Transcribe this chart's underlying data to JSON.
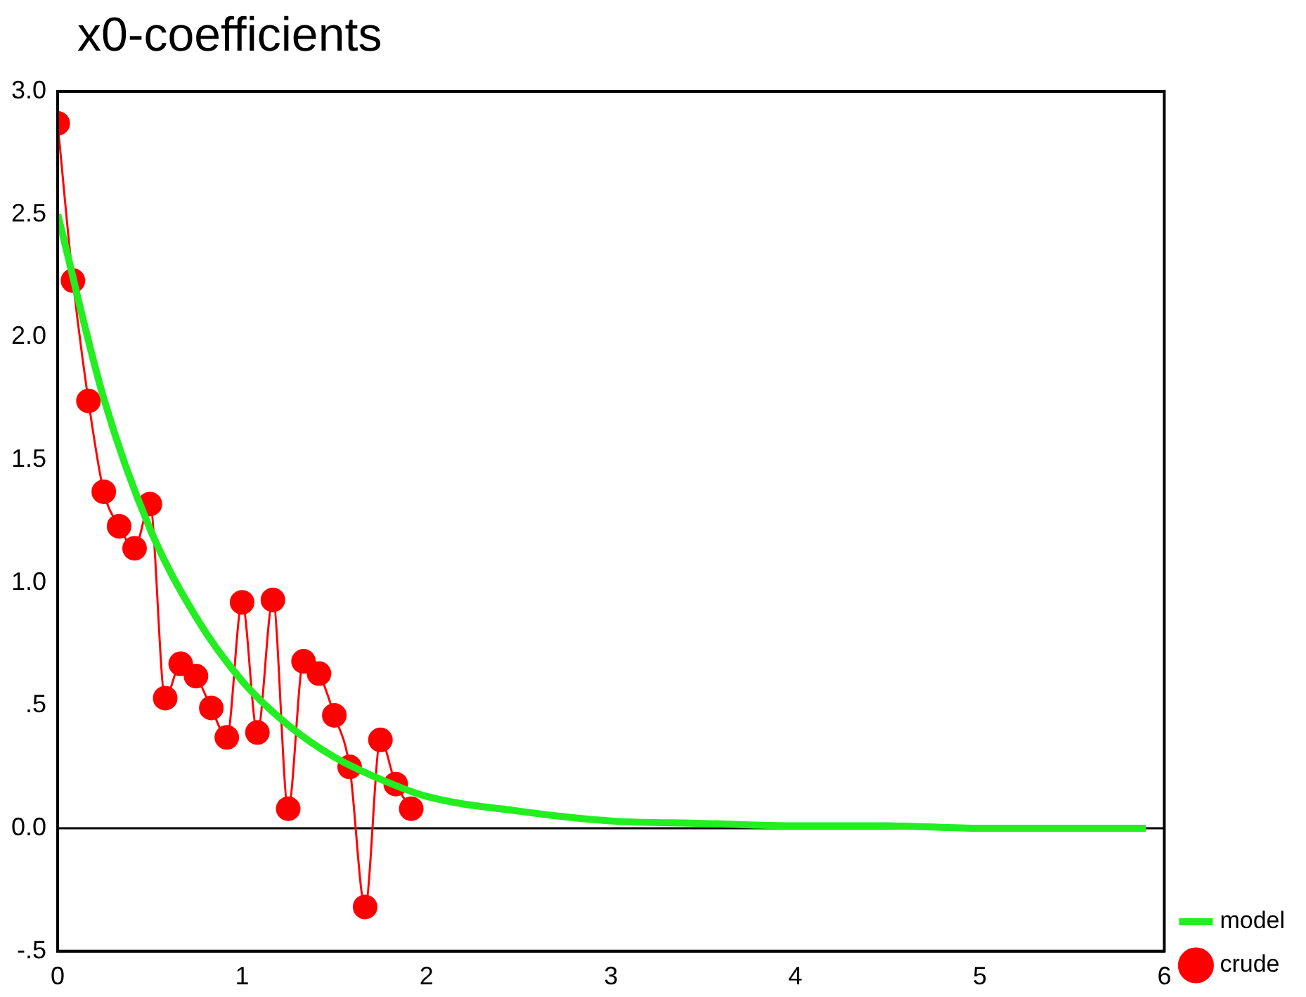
{
  "chart_data": {
    "type": "line",
    "title": "x0-coefficients",
    "xlim": [
      0,
      6
    ],
    "xticks": [
      0,
      1,
      2,
      3,
      4,
      5,
      6
    ],
    "ylim": [
      -0.5,
      3
    ],
    "yticks": [
      {
        "value": -0.5,
        "label": "-.5"
      },
      {
        "value": 0,
        "label": "0.0"
      },
      {
        "value": 0.5,
        "label": ".5"
      },
      {
        "value": 1,
        "label": "1.0"
      },
      {
        "value": 1.5,
        "label": "1.5"
      },
      {
        "value": 2,
        "label": "2.0"
      },
      {
        "value": 2.5,
        "label": "2.5"
      },
      {
        "value": 3,
        "label": "3.0"
      }
    ],
    "grid": false,
    "legend": "right",
    "ref_lines": [
      {
        "axis": "y",
        "value": 0,
        "color": "#000000"
      }
    ],
    "series": [
      {
        "name": "model",
        "color": "#22ee22",
        "marker": "none",
        "x": [
          0,
          0.25,
          0.5,
          0.75,
          1,
          1.25,
          1.5,
          1.75,
          2,
          2.5,
          3,
          3.5,
          4,
          4.5,
          5,
          5.5,
          5.9
        ],
        "values": [
          2.5,
          1.75,
          1.22,
          0.86,
          0.6,
          0.42,
          0.29,
          0.2,
          0.13,
          0.07,
          0.03,
          0.02,
          0.01,
          0.01,
          0,
          0,
          0
        ]
      },
      {
        "name": "crude",
        "color": "#ff0000",
        "marker": "circle",
        "x": [
          0,
          0.083,
          0.167,
          0.25,
          0.333,
          0.417,
          0.5,
          0.583,
          0.667,
          0.75,
          0.833,
          0.917,
          1,
          1.083,
          1.167,
          1.25,
          1.333,
          1.417,
          1.5,
          1.583,
          1.667,
          1.75,
          1.833,
          1.917
        ],
        "values": [
          2.87,
          2.23,
          1.74,
          1.37,
          1.23,
          1.14,
          1.32,
          0.53,
          0.67,
          0.62,
          0.49,
          0.37,
          0.92,
          0.39,
          0.93,
          0.08,
          0.68,
          0.63,
          0.46,
          0.25,
          -0.32,
          0.36,
          0.18,
          0.08
        ]
      }
    ]
  }
}
